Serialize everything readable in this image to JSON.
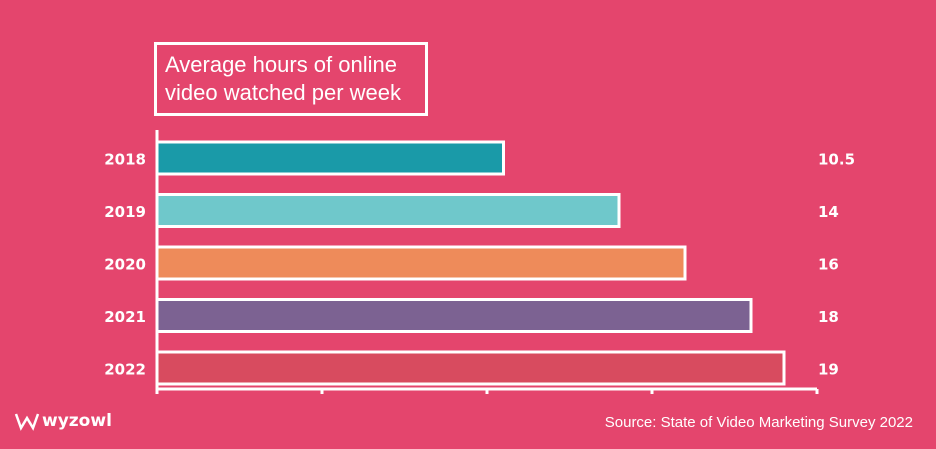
{
  "chart_data": {
    "type": "bar",
    "orientation": "horizontal",
    "title": "Average hours of online video watched per week",
    "categories": [
      "2018",
      "2019",
      "2020",
      "2021",
      "2022"
    ],
    "values": [
      10.5,
      14,
      16,
      18,
      19
    ],
    "colors": [
      "#1a9aa8",
      "#6fc8cb",
      "#ee8b5a",
      "#7c6292",
      "#d84b5f"
    ],
    "xlim": [
      0,
      20
    ],
    "xticks": [
      0,
      5,
      10,
      15,
      20
    ],
    "source": "Source: State of Video Marketing Survey 2022",
    "brand": "wyzowl"
  }
}
